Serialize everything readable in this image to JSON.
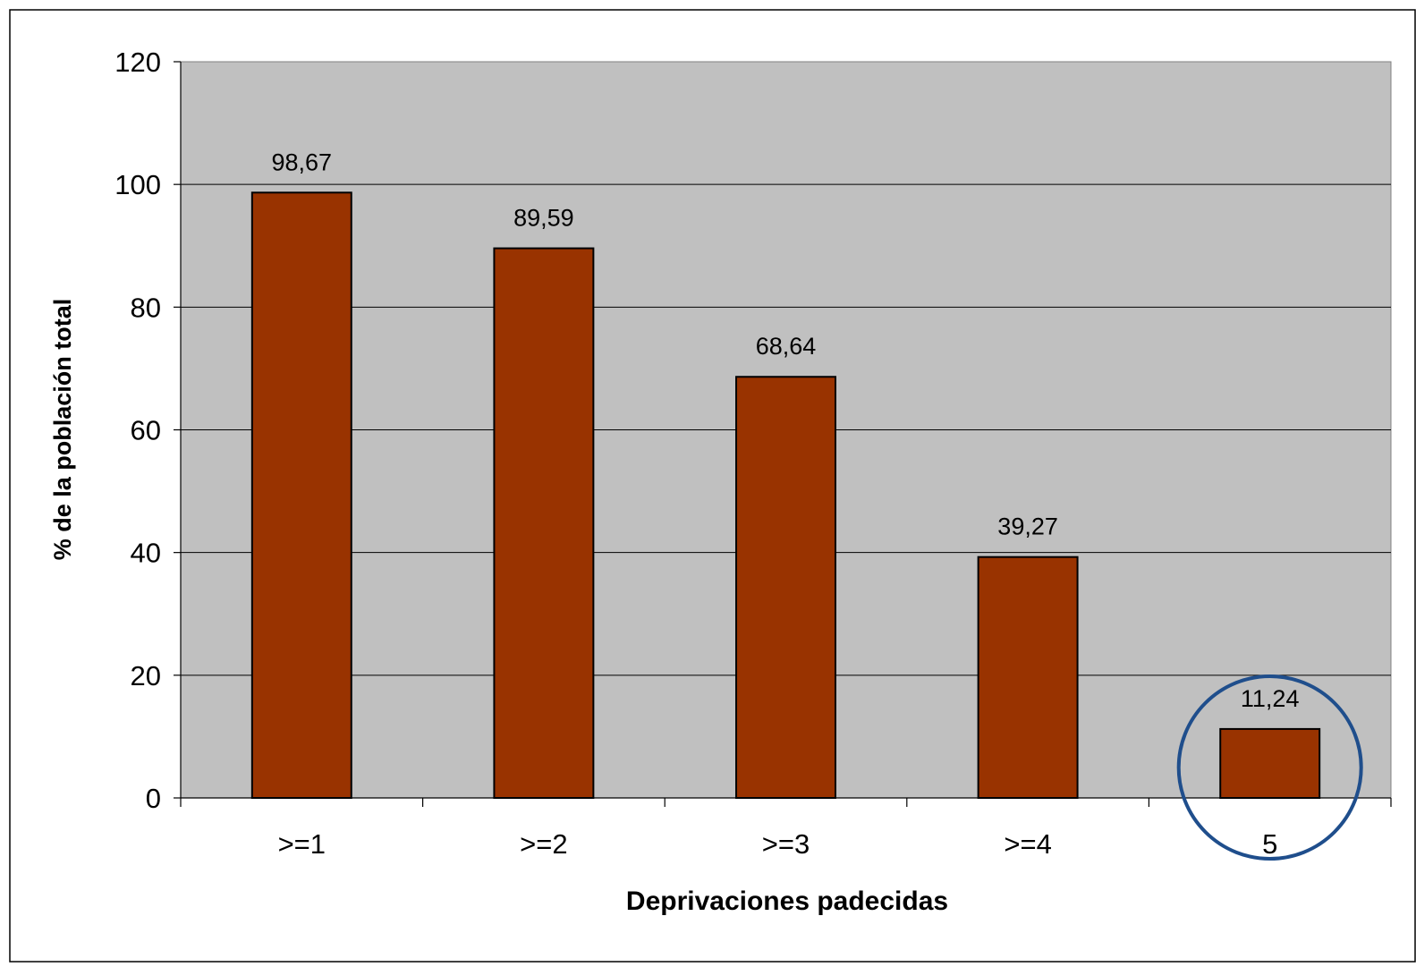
{
  "chart_data": {
    "type": "bar",
    "title": "",
    "xlabel": "Deprivaciones padecidas",
    "ylabel": "% de la población total",
    "categories": [
      ">=1",
      ">=2",
      ">=3",
      ">=4",
      "5"
    ],
    "values": [
      98.67,
      89.59,
      68.64,
      39.27,
      11.24
    ],
    "data_labels": [
      "98,67",
      "89,59",
      "68,64",
      "39,27",
      "11,24"
    ],
    "ylim": [
      0,
      120
    ],
    "yticks": [
      0,
      20,
      40,
      60,
      80,
      100,
      120
    ],
    "grid": true,
    "legend": "none",
    "highlighted_category": "5",
    "colors": {
      "bar_fill": "#993300",
      "bar_stroke": "#000000",
      "plot_background": "#c0c0c0",
      "gridline": "#000000",
      "highlight_circle": "#1f4e8c"
    }
  }
}
